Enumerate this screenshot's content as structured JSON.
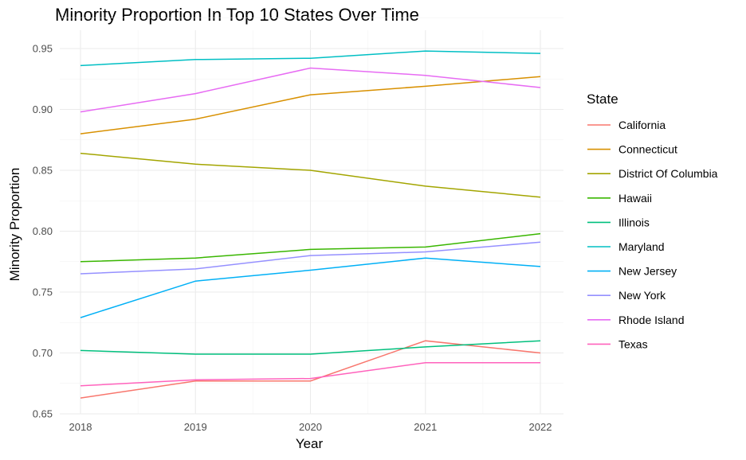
{
  "chart_data": {
    "type": "line",
    "title": "Minority Proportion In Top 10 States Over Time",
    "xlabel": "Year",
    "ylabel": "Minority Proportion",
    "x": [
      2018,
      2019,
      2020,
      2021,
      2022
    ],
    "x_ticks": [
      "2018",
      "2019",
      "2020",
      "2021",
      "2022"
    ],
    "y_ticks": [
      "0.65",
      "0.70",
      "0.75",
      "0.80",
      "0.85",
      "0.90",
      "0.95"
    ],
    "xlim": [
      2018,
      2022
    ],
    "ylim": [
      0.65,
      0.963
    ],
    "grid": true,
    "legend_title": "State",
    "legend_position": "right",
    "series": [
      {
        "name": "California",
        "color": "#F8766D",
        "values": [
          0.663,
          0.677,
          0.677,
          0.71,
          0.7
        ]
      },
      {
        "name": "Connecticut",
        "color": "#D89000",
        "values": [
          0.88,
          0.892,
          0.912,
          0.919,
          0.927
        ]
      },
      {
        "name": "District Of Columbia",
        "color": "#A3A500",
        "values": [
          0.864,
          0.855,
          0.85,
          0.837,
          0.828
        ]
      },
      {
        "name": "Hawaii",
        "color": "#39B600",
        "values": [
          0.775,
          0.778,
          0.785,
          0.787,
          0.798
        ]
      },
      {
        "name": "Illinois",
        "color": "#00BF7D",
        "values": [
          0.702,
          0.699,
          0.699,
          0.705,
          0.71
        ]
      },
      {
        "name": "Maryland",
        "color": "#00BFC4",
        "values": [
          0.936,
          0.941,
          0.942,
          0.948,
          0.946
        ]
      },
      {
        "name": "New Jersey",
        "color": "#00B0F6",
        "values": [
          0.729,
          0.759,
          0.768,
          0.778,
          0.771
        ]
      },
      {
        "name": "New York",
        "color": "#9590FF",
        "values": [
          0.765,
          0.769,
          0.78,
          0.783,
          0.791
        ]
      },
      {
        "name": "Rhode Island",
        "color": "#E76BF3",
        "values": [
          0.898,
          0.913,
          0.934,
          0.928,
          0.918
        ]
      },
      {
        "name": "Texas",
        "color": "#FF62BC",
        "values": [
          0.673,
          0.678,
          0.679,
          0.692,
          0.692
        ]
      }
    ]
  }
}
